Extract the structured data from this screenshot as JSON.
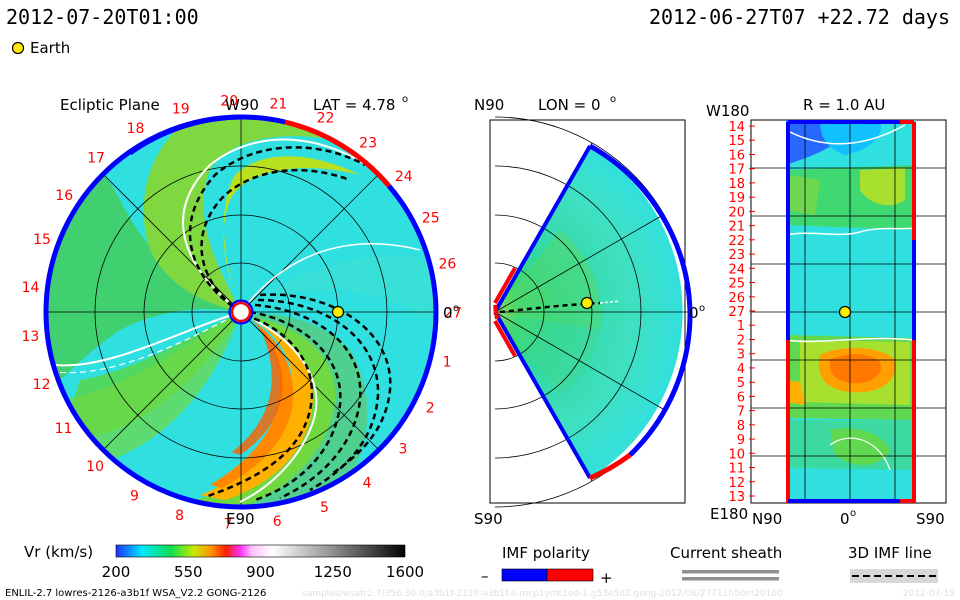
{
  "header": {
    "datetime": "2012-07-20T01:00",
    "reference": "2012-06-27T07 +22.72 days"
  },
  "legend": {
    "earth_label": "Earth",
    "earth_color": "#ffee00"
  },
  "panels": {
    "ecliptic": {
      "title": "Ecliptic Plane",
      "lat_label": "LAT = 4.78",
      "top_label": "W90",
      "bottom_label": "E90",
      "right_label": "0",
      "carrington_ticks": [
        "1",
        "2",
        "3",
        "4",
        "5",
        "6",
        "7",
        "8",
        "9",
        "10",
        "11",
        "12",
        "13",
        "14",
        "15",
        "16",
        "17",
        "18",
        "19",
        "20",
        "21",
        "22",
        "23",
        "24",
        "25",
        "26",
        "27"
      ]
    },
    "meridional": {
      "top_label": "N90",
      "lon_label": "LON = 0",
      "bottom_label": "S90",
      "right_label": "0"
    },
    "rmap": {
      "title": "R = 1.0 AU",
      "top_left": "W180",
      "bottom_left": "E180",
      "x_labels": [
        "N90",
        "0",
        "S90"
      ],
      "y_labels": [
        "14",
        "15",
        "16",
        "17",
        "18",
        "19",
        "20",
        "21",
        "22",
        "23",
        "24",
        "25",
        "26",
        "27",
        "1",
        "2",
        "3",
        "4",
        "5",
        "6",
        "7",
        "8",
        "9",
        "10",
        "11",
        "12",
        "13"
      ]
    }
  },
  "colorbar": {
    "label": "Vr (km/s)",
    "ticks": [
      "200",
      "550",
      "900",
      "1250",
      "1600"
    ],
    "range": [
      200,
      1600
    ]
  },
  "imf_polarity": {
    "title": "IMF polarity",
    "minus": "–",
    "plus": "+",
    "neg_color": "#0000ff",
    "pos_color": "#ff0000"
  },
  "current_sheath": {
    "title": "Current sheath"
  },
  "imf_line": {
    "title": "3D IMF line"
  },
  "footer": {
    "model_info": "ENLIL-2.7 lowres-2126-a3b1f WSA_V2.2 GONG-2126",
    "faint_path": "samples/wsatr2.7/356.30.0/a3b1f-2126-a3b1f-ll-mcp1ymt1ed-1.g53e5d2.gong-2012/06/27T11h50m20100",
    "faint_right": "2012-07-19"
  },
  "chart_data": {
    "type": "heatmap",
    "quantity": "Vr",
    "unit": "km/s",
    "earth": {
      "ecliptic_radius_au": 1.0,
      "lon_deg": 0,
      "lat_deg": 4.78
    },
    "colorscale": [
      {
        "v": 200,
        "c": "#2030ff"
      },
      {
        "v": 330,
        "c": "#00e8ff"
      },
      {
        "v": 460,
        "c": "#10e050"
      },
      {
        "v": 580,
        "c": "#c8e800"
      },
      {
        "v": 660,
        "c": "#ff9000"
      },
      {
        "v": 730,
        "c": "#ff2000"
      },
      {
        "v": 800,
        "c": "#ff30ff"
      },
      {
        "v": 860,
        "c": "#ffc0ff"
      },
      {
        "v": 950,
        "c": "#ffffff"
      },
      {
        "v": 1250,
        "c": "#909090"
      },
      {
        "v": 1600,
        "c": "#000000"
      }
    ]
  }
}
